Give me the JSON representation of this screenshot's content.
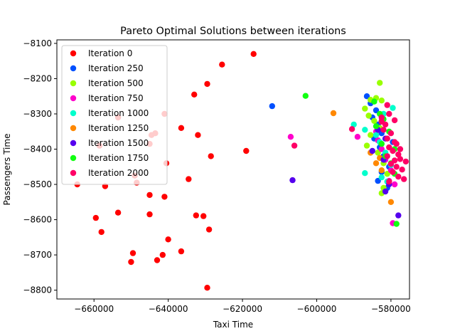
{
  "chart_data": {
    "type": "scatter",
    "title": "Pareto Optimal Solutions between iterations",
    "xlabel": "Taxi Time",
    "ylabel": "Passengers Time",
    "xlim": [
      -670000,
      -575000
    ],
    "ylim": [
      -8825,
      -8090
    ],
    "xticks": [
      -660000,
      -640000,
      -620000,
      -600000,
      -580000
    ],
    "xtick_labels": [
      "−660000",
      "−640000",
      "−620000",
      "−600000",
      "−580000"
    ],
    "yticks": [
      -8800,
      -8700,
      -8600,
      -8500,
      -8400,
      -8300,
      -8200,
      -8100
    ],
    "ytick_labels": [
      "−8800",
      "−8700",
      "−8600",
      "−8500",
      "−8400",
      "−8300",
      "−8200",
      "−8100"
    ],
    "legend_position": "upper-left",
    "series": [
      {
        "name": "Iteration 0",
        "color": "#ff0000",
        "points": [
          [
            -617000,
            -8130
          ],
          [
            -625500,
            -8160
          ],
          [
            -629500,
            -8215
          ],
          [
            -633000,
            -8245
          ],
          [
            -641000,
            -8300
          ],
          [
            -653500,
            -8310
          ],
          [
            -636500,
            -8340
          ],
          [
            -643500,
            -8355
          ],
          [
            -644500,
            -8360
          ],
          [
            -632000,
            -8360
          ],
          [
            -645000,
            -8385
          ],
          [
            -658500,
            -8390
          ],
          [
            -619000,
            -8405
          ],
          [
            -628500,
            -8420
          ],
          [
            -640500,
            -8440
          ],
          [
            -634500,
            -8485
          ],
          [
            -649000,
            -8475
          ],
          [
            -648500,
            -8495
          ],
          [
            -664500,
            -8500
          ],
          [
            -657000,
            -8505
          ],
          [
            -645000,
            -8530
          ],
          [
            -641000,
            -8535
          ],
          [
            -653500,
            -8580
          ],
          [
            -645000,
            -8585
          ],
          [
            -632500,
            -8588
          ],
          [
            -630500,
            -8590
          ],
          [
            -659500,
            -8595
          ],
          [
            -658000,
            -8635
          ],
          [
            -629000,
            -8628
          ],
          [
            -640000,
            -8656
          ],
          [
            -636500,
            -8690
          ],
          [
            -649500,
            -8695
          ],
          [
            -641500,
            -8700
          ],
          [
            -643000,
            -8715
          ],
          [
            -650000,
            -8720
          ],
          [
            -629500,
            -8793
          ]
        ]
      },
      {
        "name": "Iteration 250",
        "color": "#0050ff",
        "points": [
          [
            -612000,
            -8278
          ],
          [
            -586500,
            -8250
          ],
          [
            -585500,
            -8270
          ],
          [
            -584000,
            -8290
          ],
          [
            -585000,
            -8310
          ],
          [
            -583500,
            -8330
          ],
          [
            -582500,
            -8355
          ],
          [
            -584500,
            -8370
          ],
          [
            -583000,
            -8395
          ],
          [
            -582000,
            -8420
          ],
          [
            -580500,
            -8450
          ],
          [
            -582500,
            -8465
          ],
          [
            -583500,
            -8490
          ],
          [
            -581000,
            -8510
          ],
          [
            -579500,
            -8380
          ]
        ]
      },
      {
        "name": "Iteration 500",
        "color": "#99ff00",
        "points": [
          [
            -583000,
            -8212
          ],
          [
            -585500,
            -8260
          ],
          [
            -584000,
            -8255
          ],
          [
            -582500,
            -8262
          ],
          [
            -587000,
            -8285
          ],
          [
            -586000,
            -8305
          ],
          [
            -584500,
            -8320
          ],
          [
            -583000,
            -8340
          ],
          [
            -585500,
            -8360
          ],
          [
            -586500,
            -8390
          ],
          [
            -583500,
            -8410
          ],
          [
            -582000,
            -8440
          ],
          [
            -581000,
            -8470
          ],
          [
            -582000,
            -8510
          ],
          [
            -582500,
            -8525
          ]
        ]
      },
      {
        "name": "Iteration 750",
        "color": "#ff00cc",
        "points": [
          [
            -607000,
            -8365
          ],
          [
            -589000,
            -8365
          ],
          [
            -584000,
            -8350
          ],
          [
            -583500,
            -8375
          ],
          [
            -582500,
            -8400
          ],
          [
            -581500,
            -8430
          ],
          [
            -580000,
            -8460
          ],
          [
            -579000,
            -8500
          ],
          [
            -580500,
            -8490
          ],
          [
            -579500,
            -8610
          ]
        ]
      },
      {
        "name": "Iteration 1000",
        "color": "#00ffcc",
        "points": [
          [
            -590000,
            -8330
          ],
          [
            -587000,
            -8345
          ],
          [
            -579500,
            -8283
          ],
          [
            -582000,
            -8300
          ],
          [
            -584000,
            -8360
          ],
          [
            -583000,
            -8380
          ],
          [
            -581500,
            -8410
          ],
          [
            -580000,
            -8445
          ],
          [
            -582500,
            -8480
          ],
          [
            -587000,
            -8468
          ],
          [
            -581000,
            -8492
          ]
        ]
      },
      {
        "name": "Iteration 1250",
        "color": "#ff8800",
        "points": [
          [
            -595500,
            -8298
          ],
          [
            -585500,
            -8410
          ],
          [
            -583000,
            -8425
          ],
          [
            -584000,
            -8440
          ],
          [
            -582500,
            -8460
          ],
          [
            -580000,
            -8550
          ]
        ]
      },
      {
        "name": "Iteration 1500",
        "color": "#5500ee",
        "points": [
          [
            -606500,
            -8488
          ],
          [
            -582500,
            -8320
          ],
          [
            -583500,
            -8345
          ],
          [
            -581500,
            -8370
          ],
          [
            -585000,
            -8405
          ],
          [
            -582000,
            -8430
          ],
          [
            -580500,
            -8500
          ],
          [
            -581500,
            -8520
          ],
          [
            -578000,
            -8588
          ]
        ]
      },
      {
        "name": "Iteration 1750",
        "color": "#11ff11",
        "points": [
          [
            -603000,
            -8249
          ],
          [
            -584500,
            -8265
          ],
          [
            -583000,
            -8300
          ],
          [
            -582000,
            -8315
          ],
          [
            -584000,
            -8335
          ],
          [
            -580500,
            -8350
          ],
          [
            -582500,
            -8385
          ],
          [
            -579000,
            -8400
          ],
          [
            -581500,
            -8420
          ],
          [
            -580000,
            -8440
          ],
          [
            -579000,
            -8470
          ],
          [
            -578500,
            -8612
          ]
        ]
      },
      {
        "name": "Iteration 2000",
        "color": "#ff0066",
        "points": [
          [
            -606000,
            -8390
          ],
          [
            -590500,
            -8343
          ],
          [
            -581000,
            -8275
          ],
          [
            -582500,
            -8310
          ],
          [
            -580500,
            -8300
          ],
          [
            -581500,
            -8330
          ],
          [
            -579000,
            -8318
          ],
          [
            -582000,
            -8345
          ],
          [
            -580000,
            -8355
          ],
          [
            -581000,
            -8370
          ],
          [
            -578500,
            -8385
          ],
          [
            -580500,
            -8395
          ],
          [
            -579500,
            -8405
          ],
          [
            -578000,
            -8415
          ],
          [
            -581000,
            -8420
          ],
          [
            -577500,
            -8428
          ],
          [
            -579000,
            -8432
          ],
          [
            -576000,
            -8435
          ],
          [
            -580000,
            -8442
          ],
          [
            -578500,
            -8450
          ],
          [
            -577000,
            -8458
          ],
          [
            -579500,
            -8465
          ],
          [
            -578000,
            -8478
          ],
          [
            -576500,
            -8485
          ],
          [
            -580500,
            -8492
          ],
          [
            -582500,
            -8322
          ],
          [
            -577500,
            -8400
          ],
          [
            -579000,
            -8380
          ]
        ]
      }
    ]
  }
}
